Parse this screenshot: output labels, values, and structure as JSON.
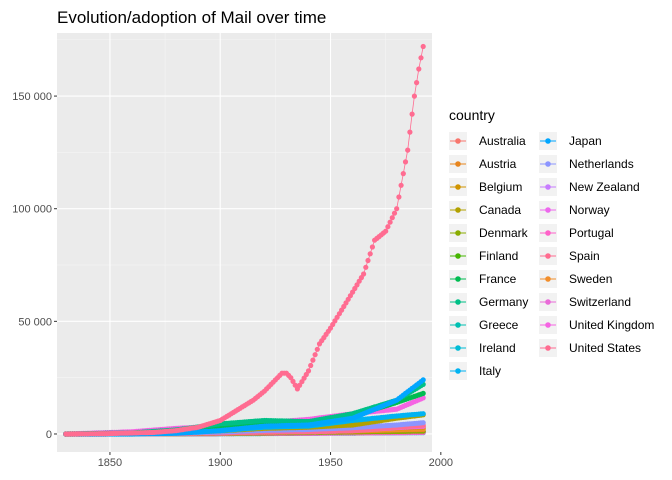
{
  "chart_data": {
    "type": "line",
    "title": "Evolution/adoption of Mail over time",
    "xlabel": "",
    "ylabel": "",
    "xlim": [
      1826,
      1996
    ],
    "ylim": [
      -8000,
      178000
    ],
    "x_ticks": [
      1850,
      1900,
      1950,
      2000
    ],
    "y_ticks": [
      0,
      50000,
      100000,
      150000
    ],
    "y_tick_labels": [
      "0",
      "50 000",
      "100 000",
      "150 000"
    ],
    "grid": true,
    "legend": {
      "title": "country",
      "position": "right",
      "columns": 2
    },
    "series": [
      {
        "name": "Australia",
        "color": "#F8766D",
        "x": [
          1830,
          1860,
          1880,
          1900,
          1920,
          1940,
          1960,
          1980,
          1992
        ],
        "y": [
          0,
          60,
          300,
          900,
          1500,
          1900,
          2300,
          2900,
          3300
        ]
      },
      {
        "name": "Austria",
        "color": "#E7851E",
        "x": [
          1830,
          1860,
          1880,
          1900,
          1920,
          1940,
          1960,
          1980,
          1992
        ],
        "y": [
          0,
          100,
          400,
          1000,
          1200,
          1100,
          1300,
          1800,
          2000
        ]
      },
      {
        "name": "Belgium",
        "color": "#D09400",
        "x": [
          1830,
          1860,
          1880,
          1900,
          1920,
          1940,
          1960,
          1980,
          1992
        ],
        "y": [
          0,
          150,
          500,
          1200,
          1600,
          1900,
          2300,
          2700,
          3000
        ]
      },
      {
        "name": "Canada",
        "color": "#B2A100",
        "x": [
          1830,
          1860,
          1880,
          1900,
          1920,
          1940,
          1960,
          1980,
          1992
        ],
        "y": [
          0,
          120,
          500,
          1400,
          2500,
          3000,
          4000,
          7000,
          8500
        ]
      },
      {
        "name": "Denmark",
        "color": "#89AC00",
        "x": [
          1830,
          1860,
          1880,
          1900,
          1920,
          1940,
          1960,
          1980,
          1992
        ],
        "y": [
          0,
          50,
          150,
          350,
          500,
          700,
          900,
          1100,
          1300
        ]
      },
      {
        "name": "Finland",
        "color": "#45B500",
        "x": [
          1830,
          1860,
          1880,
          1900,
          1920,
          1940,
          1960,
          1980,
          1992
        ],
        "y": [
          0,
          20,
          80,
          200,
          300,
          400,
          600,
          800,
          900
        ]
      },
      {
        "name": "France",
        "color": "#00BC51",
        "x": [
          1830,
          1860,
          1880,
          1900,
          1920,
          1940,
          1960,
          1980,
          1992
        ],
        "y": [
          0,
          400,
          1500,
          3200,
          5000,
          5500,
          8000,
          14000,
          18000
        ]
      },
      {
        "name": "Germany",
        "color": "#00C087",
        "x": [
          1830,
          1860,
          1880,
          1900,
          1920,
          1940,
          1960,
          1980,
          1992
        ],
        "y": [
          0,
          500,
          1800,
          4500,
          6000,
          5500,
          9000,
          15000,
          22000
        ]
      },
      {
        "name": "Greece",
        "color": "#00C0B2",
        "x": [
          1830,
          1860,
          1880,
          1900,
          1920,
          1940,
          1960,
          1980,
          1992
        ],
        "y": [
          0,
          10,
          40,
          100,
          200,
          300,
          400,
          600,
          700
        ]
      },
      {
        "name": "Ireland",
        "color": "#00BCD6",
        "x": [
          1830,
          1860,
          1880,
          1900,
          1920,
          1940,
          1960,
          1980,
          1992
        ],
        "y": [
          0,
          30,
          100,
          200,
          300,
          400,
          450,
          550,
          600
        ]
      },
      {
        "name": "Italy",
        "color": "#00B3F2",
        "x": [
          1830,
          1860,
          1880,
          1900,
          1920,
          1940,
          1960,
          1980,
          1992
        ],
        "y": [
          0,
          200,
          700,
          1500,
          3000,
          3500,
          6000,
          8000,
          9000
        ]
      },
      {
        "name": "Japan",
        "color": "#00A6FF",
        "x": [
          1830,
          1860,
          1880,
          1900,
          1920,
          1940,
          1960,
          1980,
          1992
        ],
        "y": [
          0,
          10,
          300,
          1500,
          3500,
          4000,
          7000,
          15000,
          24000
        ]
      },
      {
        "name": "Netherlands",
        "color": "#8C95FF",
        "x": [
          1830,
          1860,
          1880,
          1900,
          1920,
          1940,
          1960,
          1980,
          1992
        ],
        "y": [
          0,
          100,
          400,
          900,
          1600,
          2000,
          2800,
          4000,
          5000
        ]
      },
      {
        "name": "New Zealand",
        "color": "#C77CFF",
        "x": [
          1830,
          1860,
          1880,
          1900,
          1920,
          1940,
          1960,
          1980,
          1992
        ],
        "y": [
          0,
          20,
          80,
          200,
          300,
          400,
          500,
          600,
          700
        ]
      },
      {
        "name": "Norway",
        "color": "#ED68ED",
        "x": [
          1830,
          1860,
          1880,
          1900,
          1920,
          1940,
          1960,
          1980,
          1992
        ],
        "y": [
          0,
          20,
          80,
          200,
          300,
          400,
          500,
          600,
          700
        ]
      },
      {
        "name": "Portugal",
        "color": "#FF61C9",
        "x": [
          1830,
          1860,
          1880,
          1900,
          1920,
          1940,
          1960,
          1980,
          1992
        ],
        "y": [
          0,
          20,
          80,
          200,
          300,
          350,
          500,
          700,
          900
        ]
      },
      {
        "name": "Spain",
        "color": "#FF6C90",
        "x": [
          1830,
          1860,
          1880,
          1900,
          1920,
          1940,
          1960,
          1980,
          1992
        ],
        "y": [
          0,
          100,
          300,
          600,
          800,
          1000,
          1500,
          3000,
          4000
        ]
      },
      {
        "name": "Sweden",
        "color": "#F28E2B",
        "x": [
          1830,
          1860,
          1880,
          1900,
          1920,
          1940,
          1960,
          1980,
          1992
        ],
        "y": [
          0,
          50,
          200,
          500,
          800,
          1000,
          1500,
          2000,
          2300
        ]
      },
      {
        "name": "Switzerland",
        "color": "#E96BD8",
        "x": [
          1830,
          1860,
          1880,
          1900,
          1920,
          1940,
          1960,
          1980,
          1992
        ],
        "y": [
          0,
          60,
          250,
          600,
          900,
          1000,
          1500,
          2800,
          3500
        ]
      },
      {
        "name": "United Kingdom",
        "color": "#F564E3",
        "x": [
          1830,
          1860,
          1880,
          1900,
          1920,
          1940,
          1960,
          1980,
          1992
        ],
        "y": [
          0,
          1000,
          2500,
          3500,
          5000,
          6500,
          9000,
          11000,
          16000
        ]
      },
      {
        "name": "United States",
        "color": "#FF6C91",
        "x": [
          1830,
          1850,
          1870,
          1880,
          1890,
          1900,
          1910,
          1915,
          1920,
          1925,
          1928,
          1930,
          1932,
          1935,
          1940,
          1945,
          1950,
          1955,
          1960,
          1965,
          1970,
          1975,
          1980,
          1985,
          1988,
          1990,
          1992
        ],
        "y": [
          0,
          200,
          700,
          1500,
          3000,
          6000,
          12000,
          15000,
          19000,
          24000,
          27000,
          27000,
          25000,
          20000,
          28000,
          40000,
          47000,
          55000,
          63000,
          71000,
          86000,
          90000,
          100000,
          126000,
          150000,
          162000,
          172000
        ]
      }
    ]
  }
}
